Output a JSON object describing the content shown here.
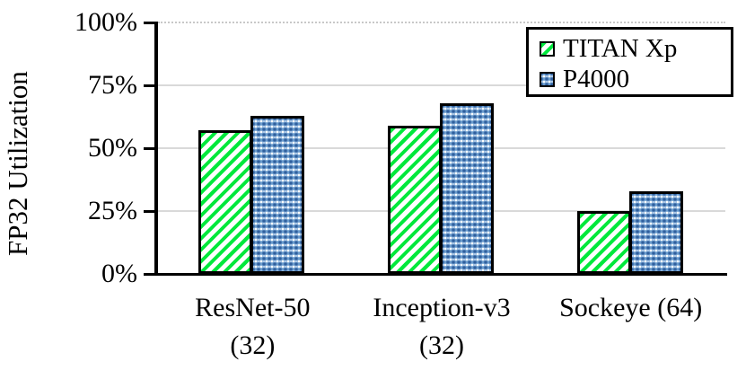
{
  "chart_data": {
    "type": "bar",
    "title": "",
    "xlabel": "",
    "ylabel": "FP32 Utilization",
    "categories": [
      "ResNet-50 (32)",
      "Inception-v3 (32)",
      "Sockeye (64)"
    ],
    "category_label_lines": [
      [
        "ResNet-50",
        "(32)"
      ],
      [
        "Inception-v3",
        "(32)"
      ],
      [
        "Sockeye (64)"
      ]
    ],
    "series": [
      {
        "name": "TITAN Xp",
        "values": [
          57,
          59,
          25
        ],
        "pattern": "green-diagonal-hatch",
        "color": "#00e83c"
      },
      {
        "name": "P4000",
        "values": [
          63,
          68,
          33
        ],
        "pattern": "blue-dot-weave",
        "color": "#6b9ccd"
      }
    ],
    "ylim": [
      0,
      100
    ],
    "ytick_values": [
      0,
      25,
      50,
      75,
      100
    ],
    "ytick_labels": [
      "0%",
      "25%",
      "50%",
      "75%",
      "100%"
    ],
    "grid": "horizontal",
    "gridline_color": "#d9d9d9",
    "top_gridline_style": "dotted",
    "legend_position": "top-right",
    "axis_color": "#000000"
  }
}
